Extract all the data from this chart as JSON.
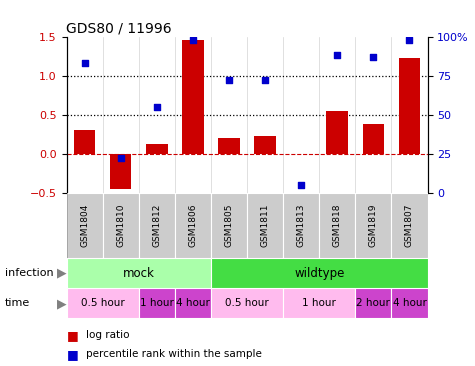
{
  "title": "GDS80 / 11996",
  "samples": [
    "GSM1804",
    "GSM1810",
    "GSM1812",
    "GSM1806",
    "GSM1805",
    "GSM1811",
    "GSM1813",
    "GSM1818",
    "GSM1819",
    "GSM1807"
  ],
  "log_ratio": [
    0.3,
    -0.45,
    0.12,
    1.45,
    0.2,
    0.22,
    0.0,
    0.55,
    0.38,
    1.23
  ],
  "percentile_rank": [
    83,
    22,
    55,
    98,
    72,
    72,
    5,
    88,
    87,
    98
  ],
  "ylim_left": [
    -0.5,
    1.5
  ],
  "ylim_right": [
    0,
    100
  ],
  "yticks_left": [
    -0.5,
    0.0,
    0.5,
    1.0,
    1.5
  ],
  "yticks_right": [
    0,
    25,
    50,
    75,
    100
  ],
  "ytick_labels_right": [
    "0",
    "25",
    "50",
    "75",
    "100%"
  ],
  "hlines_dotted": [
    0.5,
    1.0
  ],
  "hline_dashed": 0.0,
  "bar_color": "#cc0000",
  "scatter_color": "#0000cc",
  "bar_width": 0.6,
  "infection_mock_color": "#aaffaa",
  "infection_wildtype_color": "#44dd44",
  "time_light_color": "#ffbbee",
  "time_dark_color": "#cc44cc",
  "sample_bg_color": "#cccccc",
  "infection_row": [
    {
      "label": "mock",
      "start": 0,
      "end": 4
    },
    {
      "label": "wildtype",
      "start": 4,
      "end": 10
    }
  ],
  "time_row": [
    {
      "label": "0.5 hour",
      "start": 0,
      "end": 2,
      "dark": false
    },
    {
      "label": "1 hour",
      "start": 2,
      "end": 3,
      "dark": true
    },
    {
      "label": "4 hour",
      "start": 3,
      "end": 4,
      "dark": true
    },
    {
      "label": "0.5 hour",
      "start": 4,
      "end": 6,
      "dark": false
    },
    {
      "label": "1 hour",
      "start": 6,
      "end": 8,
      "dark": false
    },
    {
      "label": "2 hour",
      "start": 8,
      "end": 9,
      "dark": true
    },
    {
      "label": "4 hour",
      "start": 9,
      "end": 10,
      "dark": true
    }
  ],
  "legend_items": [
    {
      "label": "log ratio",
      "color": "#cc0000"
    },
    {
      "label": "percentile rank within the sample",
      "color": "#0000cc"
    }
  ]
}
